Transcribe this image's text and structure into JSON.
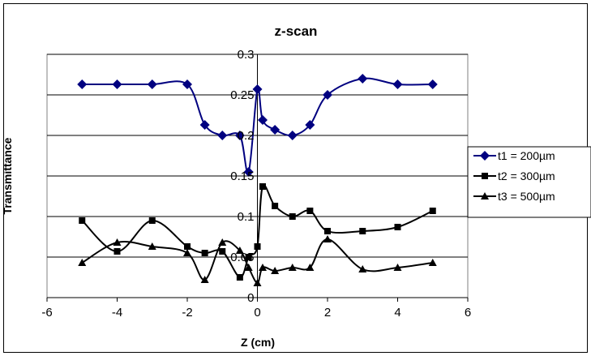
{
  "chart_data": {
    "type": "line",
    "title": "z-scan",
    "xlabel": "Z (cm)",
    "ylabel": "Transmittance",
    "xlim": [
      -6,
      6
    ],
    "ylim": [
      0,
      0.3
    ],
    "xticks": [
      -6,
      -4,
      -2,
      0,
      2,
      4,
      6
    ],
    "yticks": [
      0,
      0.05,
      0.1,
      0.15,
      0.2,
      0.25,
      0.3
    ],
    "xtick_labels": [
      "-6",
      "-4",
      "-2",
      "0",
      "2",
      "4",
      "6"
    ],
    "ytick_labels": [
      "0",
      "0.05",
      "0.1",
      "0.15",
      "0.2",
      "0.25",
      "0.3"
    ],
    "grid": "horizontal",
    "legend_position": "right",
    "series": [
      {
        "name": "t1 = 200µm",
        "color": "#000080",
        "marker": "diamond",
        "x": [
          -5,
          -4,
          -3,
          -2,
          -1.5,
          -1,
          -0.5,
          -0.25,
          0,
          0.15,
          0.5,
          1,
          1.5,
          2,
          3,
          4,
          5
        ],
        "y": [
          0.263,
          0.263,
          0.263,
          0.263,
          0.213,
          0.2,
          0.2,
          0.155,
          0.257,
          0.219,
          0.207,
          0.2,
          0.213,
          0.25,
          0.27,
          0.263,
          0.263
        ]
      },
      {
        "name": "t2 = 300µm",
        "color": "#000000",
        "marker": "square",
        "x": [
          -5,
          -4,
          -3,
          -2,
          -1.5,
          -1,
          -0.5,
          -0.25,
          0,
          0.15,
          0.5,
          1,
          1.5,
          2,
          3,
          4,
          5
        ],
        "y": [
          0.095,
          0.057,
          0.095,
          0.063,
          0.055,
          0.057,
          0.025,
          0.05,
          0.063,
          0.137,
          0.113,
          0.1,
          0.107,
          0.082,
          0.082,
          0.087,
          0.107
        ]
      },
      {
        "name": "t3 = 500µm",
        "color": "#000000",
        "marker": "triangle",
        "x": [
          -5,
          -4,
          -3,
          -2,
          -1.5,
          -1,
          -0.5,
          -0.25,
          0,
          0.15,
          0.5,
          1,
          1.5,
          2,
          3,
          4,
          5
        ],
        "y": [
          0.043,
          0.068,
          0.063,
          0.055,
          0.022,
          0.068,
          0.058,
          0.037,
          0.018,
          0.037,
          0.033,
          0.037,
          0.037,
          0.072,
          0.035,
          0.037,
          0.043
        ]
      }
    ]
  }
}
